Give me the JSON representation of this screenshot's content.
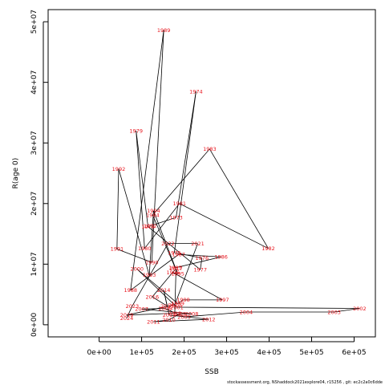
{
  "chart_data": {
    "type": "scatter",
    "connected": true,
    "xlabel": "SSB",
    "ylabel": "R(age 0)",
    "xlim": [
      -120000,
      650000
    ],
    "ylim": [
      -2000000,
      52000000
    ],
    "x_ticks": [
      0,
      100000,
      200000,
      300000,
      400000,
      500000,
      600000
    ],
    "x_tick_labels": [
      "0e+00",
      "1e+05",
      "2e+05",
      "3e+05",
      "4e+05",
      "5e+05",
      "6e+05"
    ],
    "y_ticks": [
      0,
      10000000,
      20000000,
      30000000,
      40000000,
      50000000
    ],
    "y_tick_labels": [
      "0e+00",
      "1e+07",
      "2e+07",
      "3e+07",
      "4e+07",
      "5e+07"
    ],
    "grid": false,
    "point_label_color": "#e8131b",
    "line_color": "#000000",
    "points": [
      {
        "year": "1972",
        "ssb": 120000,
        "r": 16300000
      },
      {
        "year": "1973",
        "ssb": 181000,
        "r": 17700000
      },
      {
        "year": "1974",
        "ssb": 228000,
        "r": 38500000
      },
      {
        "year": "1975",
        "ssb": 177000,
        "r": 11900000
      },
      {
        "year": "1976",
        "ssb": 242000,
        "r": 11000000
      },
      {
        "year": "1977",
        "ssb": 238000,
        "r": 9100000
      },
      {
        "year": "1978",
        "ssb": 115000,
        "r": 16200000
      },
      {
        "year": "1979",
        "ssb": 87000,
        "r": 32000000
      },
      {
        "year": "1980",
        "ssb": 107000,
        "r": 12600000
      },
      {
        "year": "1981",
        "ssb": 189000,
        "r": 20000000
      },
      {
        "year": "1982",
        "ssb": 398000,
        "r": 12600000
      },
      {
        "year": "1983",
        "ssb": 260000,
        "r": 29000000
      },
      {
        "year": "1984",
        "ssb": 126000,
        "r": 18100000
      },
      {
        "year": "1985",
        "ssb": 179000,
        "r": 9400000
      },
      {
        "year": "1986",
        "ssb": 287000,
        "r": 11200000
      },
      {
        "year": "1987",
        "ssb": 187000,
        "r": 11600000
      },
      {
        "year": "1988",
        "ssb": 74000,
        "r": 5700000
      },
      {
        "year": "1989",
        "ssb": 152000,
        "r": 48600000
      },
      {
        "year": "1990",
        "ssb": 124000,
        "r": 10300000
      },
      {
        "year": "1991",
        "ssb": 42000,
        "r": 12500000
      },
      {
        "year": "1992",
        "ssb": 46000,
        "r": 25700000
      },
      {
        "year": "1993",
        "ssb": 118000,
        "r": 8200000
      },
      {
        "year": "1994",
        "ssb": 128000,
        "r": 18800000
      },
      {
        "year": "1995",
        "ssb": 185000,
        "r": 8400000
      },
      {
        "year": "1996",
        "ssb": 174000,
        "r": 8600000
      },
      {
        "year": "1997",
        "ssb": 290000,
        "r": 4100000
      },
      {
        "year": "1998",
        "ssb": 198000,
        "r": 4100000
      },
      {
        "year": "1999",
        "ssb": 185000,
        "r": 3500000
      },
      {
        "year": "2000",
        "ssb": 89000,
        "r": 9200000
      },
      {
        "year": "2001",
        "ssb": 183000,
        "r": 2900000
      },
      {
        "year": "2002",
        "ssb": 613000,
        "r": 2700000
      },
      {
        "year": "2003",
        "ssb": 553000,
        "r": 2100000
      },
      {
        "year": "2004",
        "ssb": 346000,
        "r": 2100000
      },
      {
        "year": "2005",
        "ssb": 200000,
        "r": 1300000
      },
      {
        "year": "2006",
        "ssb": 155000,
        "r": 2700000
      },
      {
        "year": "2007",
        "ssb": 100000,
        "r": 2600000
      },
      {
        "year": "2008",
        "ssb": 218000,
        "r": 1800000
      },
      {
        "year": "2009",
        "ssb": 189000,
        "r": 1800000
      },
      {
        "year": "2010",
        "ssb": 164000,
        "r": 800000
      },
      {
        "year": "2011",
        "ssb": 128000,
        "r": 500000
      },
      {
        "year": "2012",
        "ssb": 258000,
        "r": 900000
      },
      {
        "year": "2013",
        "ssb": 165000,
        "r": 1600000
      },
      {
        "year": "2014",
        "ssb": 152000,
        "r": 5700000
      },
      {
        "year": "2015",
        "ssb": 160000,
        "r": 3100000
      },
      {
        "year": "2016",
        "ssb": 125000,
        "r": 4600000
      },
      {
        "year": "2017",
        "ssb": 181000,
        "r": 9300000
      },
      {
        "year": "2018",
        "ssb": 178000,
        "r": 1900000
      },
      {
        "year": "2019",
        "ssb": 65000,
        "r": 1600000
      },
      {
        "year": "2020",
        "ssb": 178000,
        "r": 3300000
      },
      {
        "year": "2021",
        "ssb": 232000,
        "r": 13400000
      },
      {
        "year": "2022",
        "ssb": 162000,
        "r": 13400000
      },
      {
        "year": "2023",
        "ssb": 78000,
        "r": 3100000
      },
      {
        "year": "2024",
        "ssb": 65000,
        "r": 1100000
      }
    ]
  },
  "credit": "stockassessment.org, NShaddock2021explore04, r15256 , git: ec2c2a0c6dde"
}
